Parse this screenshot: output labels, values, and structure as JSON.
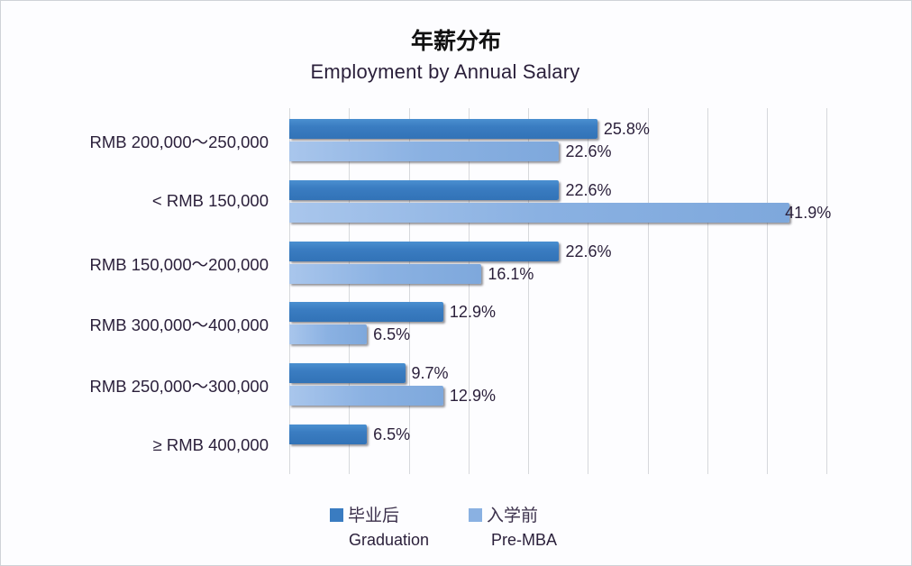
{
  "chart_data": {
    "type": "bar",
    "orientation": "horizontal",
    "title": "年薪分布",
    "subtitle": "Employment by Annual Salary",
    "categories": [
      "RMB 200,000～250,000",
      "< RMB 150,000",
      "RMB 150,000～200,000",
      "RMB 300,000～400,000",
      "RMB 250,000～300,000",
      "≥ RMB 400,000"
    ],
    "series": [
      {
        "name": "毕业后 Graduation",
        "name_cn": "毕业后",
        "name_en": "Graduation",
        "color": "#3a7cc1",
        "values": [
          25.8,
          22.6,
          22.6,
          12.9,
          9.7,
          6.5
        ],
        "labels": [
          "25.8%",
          "22.6%",
          "22.6%",
          "12.9%",
          "9.7%",
          "6.5%"
        ]
      },
      {
        "name": "入学前 Pre-MBA",
        "name_cn": "入学前",
        "name_en": "Pre-MBA",
        "color": "#8ab1e2",
        "values": [
          22.6,
          41.9,
          16.1,
          6.5,
          12.9,
          0
        ],
        "labels": [
          "22.6%",
          "41.9%",
          "16.1%",
          "6.5%",
          "12.9%",
          ""
        ]
      }
    ],
    "xlabel": "",
    "ylabel": "",
    "xlim": [
      0,
      45
    ],
    "grid_step": 5,
    "grid": true,
    "x_tick_labels_visible": false,
    "legend_position": "bottom"
  }
}
